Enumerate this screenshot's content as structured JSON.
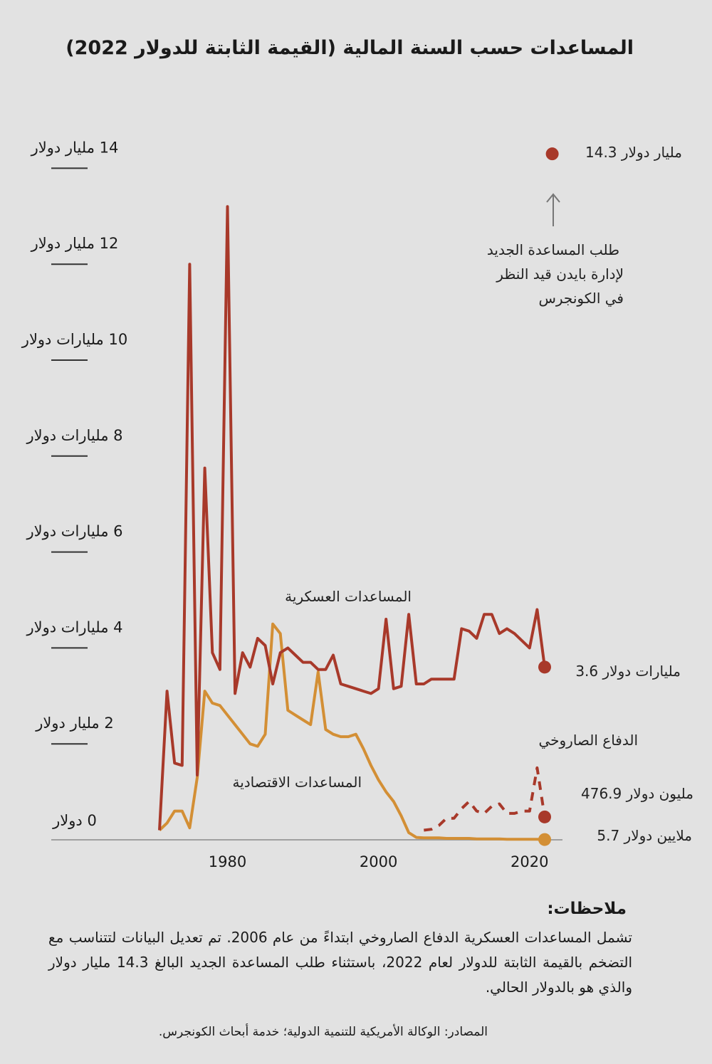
{
  "title": "المساعدات حسب السنة المالية (القيمة الثابتة للدولار 2022)",
  "colors": {
    "background": "#e2e2e2",
    "military": "#a8392a",
    "economic": "#d38f35",
    "axis": "#a0a0a0"
  },
  "chart_data": {
    "type": "line",
    "title": "المساعدات حسب السنة المالية (القيمة الثابتة للدولار 2022)",
    "xlabel": "",
    "ylabel": "",
    "xlim": [
      1971,
      2023
    ],
    "ylim": [
      0,
      14.3
    ],
    "x_ticks": [
      {
        "value": 1980,
        "label": "1980"
      },
      {
        "value": 2000,
        "label": "2000"
      },
      {
        "value": 2020,
        "label": "2020"
      }
    ],
    "y_ticks": [
      {
        "value": 0,
        "label": "0 دولار"
      },
      {
        "value": 2,
        "label": "2 مليار دولار"
      },
      {
        "value": 4,
        "label": "4 مليارات دولار"
      },
      {
        "value": 6,
        "label": "6 مليارات دولار"
      },
      {
        "value": 8,
        "label": "8 مليارات دولار"
      },
      {
        "value": 10,
        "label": "10 مليارات دولار"
      },
      {
        "value": 12,
        "label": "12 مليار دولار"
      },
      {
        "value": 14,
        "label": "14 مليار دولار"
      }
    ],
    "grid": false,
    "series": [
      {
        "name": "المساعدات العسكرية",
        "key": "military",
        "style": "solid",
        "start_year": 1971,
        "values": [
          0.2,
          3.1,
          1.6,
          1.55,
          12.0,
          1.35,
          7.75,
          3.9,
          3.55,
          13.2,
          3.05,
          3.9,
          3.6,
          4.2,
          4.05,
          3.25,
          3.9,
          4.0,
          3.85,
          3.7,
          3.7,
          3.55,
          3.55,
          3.85,
          3.25,
          3.2,
          3.15,
          3.1,
          3.05,
          3.15,
          4.6,
          3.15,
          3.2,
          4.7,
          3.25,
          3.25,
          3.35,
          3.35,
          3.35,
          3.35,
          4.4,
          4.35,
          4.2,
          4.7,
          4.7,
          4.3,
          4.4,
          4.3,
          4.15,
          4.0,
          4.8,
          3.6
        ],
        "end_label": "3.6 مليارات دولار"
      },
      {
        "name": "المساعدات الاقتصادية",
        "key": "economic",
        "style": "solid",
        "start_year": 1971,
        "values": [
          0.2,
          0.35,
          0.6,
          0.6,
          0.25,
          1.3,
          3.1,
          2.85,
          2.8,
          2.6,
          2.4,
          2.2,
          2.0,
          1.95,
          2.2,
          4.5,
          4.3,
          2.7,
          2.6,
          2.5,
          2.4,
          3.5,
          2.3,
          2.2,
          2.15,
          2.15,
          2.2,
          1.9,
          1.55,
          1.25,
          1.0,
          0.8,
          0.5,
          0.15,
          0.05,
          0.04,
          0.04,
          0.04,
          0.03,
          0.03,
          0.03,
          0.03,
          0.02,
          0.02,
          0.02,
          0.02,
          0.01,
          0.01,
          0.01,
          0.01,
          0.01,
          0.0057
        ],
        "end_label": "5.7 ملايين دولار"
      },
      {
        "name": "الدفاع الصاروخي",
        "key": "missile",
        "style": "dashed",
        "start_year": 2006,
        "values": [
          0.2,
          0.22,
          0.3,
          0.45,
          0.45,
          0.65,
          0.8,
          0.6,
          0.55,
          0.7,
          0.75,
          0.55,
          0.55,
          0.6,
          0.6,
          1.5,
          0.477
        ],
        "end_label": "476.9 مليون دولار"
      }
    ],
    "annotations": {
      "request_value": 14.3,
      "request_year": 2023,
      "request_label": "14.3 مليار دولار",
      "request_note": [
        "طلب المساعدة الجديد",
        "لإدارة بايدن قيد النظر",
        "في الكونجرس"
      ]
    }
  },
  "notes": {
    "title": "ملاحظات:",
    "body": "تشمل المساعدات العسكرية الدفاع الصاروخي ابتداءً من عام 2006. تم تعديل البيانات لتتناسب مع التضخم بالقيمة الثابتة للدولار لعام 2022، باستثناء طلب المساعدة الجديد البالغ 14.3 مليار دولار والذي هو بالدولار الحالي."
  },
  "source": "المصادر: الوكالة الأمريكية للتنمية الدولية؛ خدمة أبحاث الكونجرس."
}
